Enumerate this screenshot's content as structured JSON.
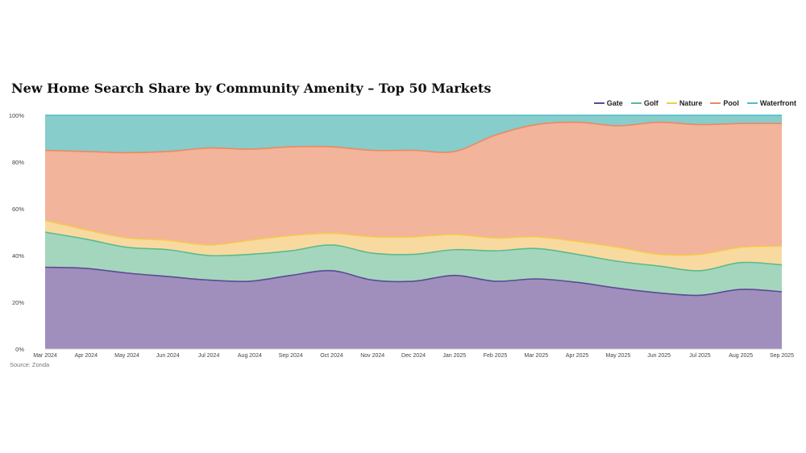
{
  "title": "New Home Search Share by Community Amenity – Top 50 Markets",
  "source": "Source: Zonda",
  "colors": {
    "Gate": {
      "line": "#5b4a96",
      "fill": "#a08fbc"
    },
    "Golf": {
      "line": "#5cba8e",
      "fill": "#a4d6bd"
    },
    "Nature": {
      "line": "#f6ca4f",
      "fill": "#f8daa0"
    },
    "Pool": {
      "line": "#ec8960",
      "fill": "#f2b49b"
    },
    "Waterfront": {
      "line": "#4fbdc4",
      "fill": "#86cdcb"
    }
  },
  "chart_data": {
    "type": "area",
    "stacked": true,
    "categories": [
      "Mar 2024",
      "Apr 2024",
      "May 2024",
      "Jun 2024",
      "Jul 2024",
      "Aug 2024",
      "Sep 2024",
      "Oct 2024",
      "Nov 2024",
      "Dec 2024",
      "Jan 2025",
      "Feb 2025",
      "Mar 2025",
      "Apr 2025",
      "May 2025",
      "Jun 2025",
      "Jul 2025",
      "Aug 2025",
      "Sep 2025"
    ],
    "ylim": [
      0,
      100
    ],
    "yticks": [
      "0%",
      "20%",
      "40%",
      "60%",
      "80%",
      "100%"
    ],
    "legend_position": "top-right",
    "series": [
      {
        "name": "Gate",
        "values": [
          35,
          34.5,
          32.5,
          31,
          29.5,
          29,
          31.5,
          33.5,
          29.5,
          29,
          31.5,
          29,
          30,
          28.5,
          26,
          24,
          23,
          25.5,
          24.5
        ]
      },
      {
        "name": "Golf",
        "values": [
          15,
          12.5,
          11,
          11.5,
          10.5,
          11.5,
          10.5,
          11,
          11.5,
          11.5,
          11,
          13,
          13,
          12,
          11.5,
          11.5,
          10.5,
          11.5,
          11.5
        ]
      },
      {
        "name": "Nature",
        "values": [
          5,
          4,
          4,
          4,
          4.5,
          6,
          6.5,
          5,
          7,
          7.5,
          6.5,
          5.5,
          5,
          5.5,
          6,
          5,
          7,
          6.5,
          8
        ]
      },
      {
        "name": "Pool",
        "values": [
          30,
          33.5,
          36.5,
          38,
          41.5,
          39,
          38,
          37,
          37,
          37,
          35.5,
          44,
          48,
          51,
          52,
          56.5,
          55.5,
          53,
          52.5
        ]
      },
      {
        "name": "Waterfront",
        "values": [
          15,
          15.5,
          16,
          15.5,
          14,
          14.5,
          13.5,
          13.5,
          15,
          15,
          15.5,
          8.5,
          4,
          3,
          4.5,
          3,
          4,
          3.5,
          3.5
        ]
      }
    ]
  }
}
